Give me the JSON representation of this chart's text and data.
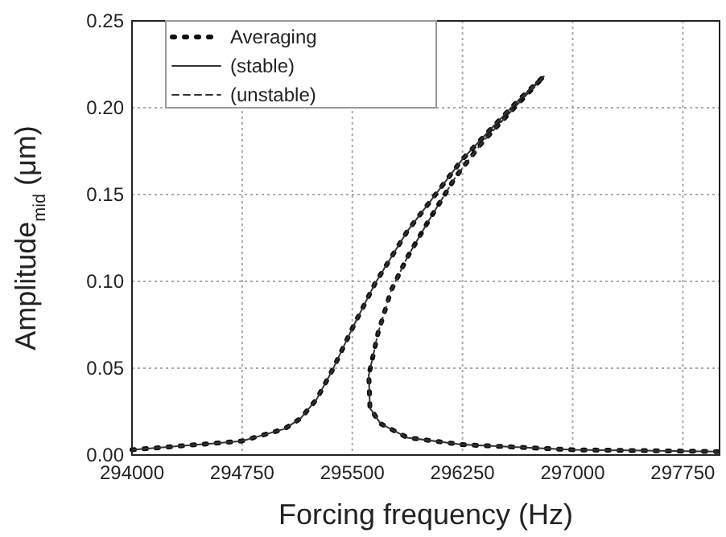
{
  "chart_data": {
    "type": "line",
    "xlabel": "Forcing frequency (Hz)",
    "ylabel": "Amplitude$_{mid}$ (μm)",
    "xlim": [
      294000,
      298000
    ],
    "ylim": [
      0,
      0.25
    ],
    "xticks": [
      294000,
      294750,
      295500,
      296250,
      297000,
      297750
    ],
    "yticks": [
      {
        "value": 0,
        "label": "0.00"
      },
      {
        "value": 0.05,
        "label": "0.05"
      },
      {
        "value": 0.1,
        "label": "0.10"
      },
      {
        "value": 0.15,
        "label": "0.15"
      },
      {
        "value": 0.2,
        "label": "0.20"
      },
      {
        "value": 0.25,
        "label": "0.25"
      }
    ],
    "grid": true,
    "legend": "top left",
    "series": [
      {
        "name": "Averaging",
        "color": "#111111",
        "line_style": "dotted",
        "x": [
          294000,
          294746,
          295037,
          295147,
          295256,
          295365,
          295500,
          295656,
          295875,
          296057,
          296246,
          296457,
          296639,
          296803,
          296603,
          296384,
          296202,
          296020,
          295875,
          295765,
          295674,
          295620,
          295612,
          295620,
          295693,
          295875,
          296246,
          297003,
          297986
        ],
        "values": [
          0.003,
          0.008,
          0.015,
          0.021,
          0.032,
          0.049,
          0.073,
          0.099,
          0.129,
          0.149,
          0.17,
          0.189,
          0.205,
          0.218,
          0.2,
          0.18,
          0.16,
          0.135,
          0.114,
          0.095,
          0.07,
          0.049,
          0.046,
          0.027,
          0.018,
          0.01,
          0.006,
          0.003,
          0.002
        ]
      },
      {
        "name": "(stable)",
        "color": "#333333",
        "line_style": "solid",
        "x": [
          294000,
          294746,
          295037,
          295147,
          295256,
          295365,
          295500,
          295656,
          295875,
          296057,
          296246,
          296457,
          296639,
          296803,
          null,
          295612,
          295620,
          295693,
          295875,
          296246,
          297003,
          297986
        ],
        "values": [
          0.003,
          0.008,
          0.015,
          0.021,
          0.032,
          0.049,
          0.073,
          0.099,
          0.129,
          0.149,
          0.17,
          0.189,
          0.205,
          0.218,
          null,
          0.046,
          0.027,
          0.018,
          0.01,
          0.006,
          0.003,
          0.002
        ]
      },
      {
        "name": "(unstable)",
        "color": "#333333",
        "line_style": "dashed",
        "x": [
          296803,
          296603,
          296384,
          296202,
          296020,
          295875,
          295765,
          295674,
          295620,
          295612
        ],
        "values": [
          0.218,
          0.2,
          0.18,
          0.16,
          0.135,
          0.114,
          0.095,
          0.07,
          0.049,
          0.046
        ]
      }
    ]
  }
}
